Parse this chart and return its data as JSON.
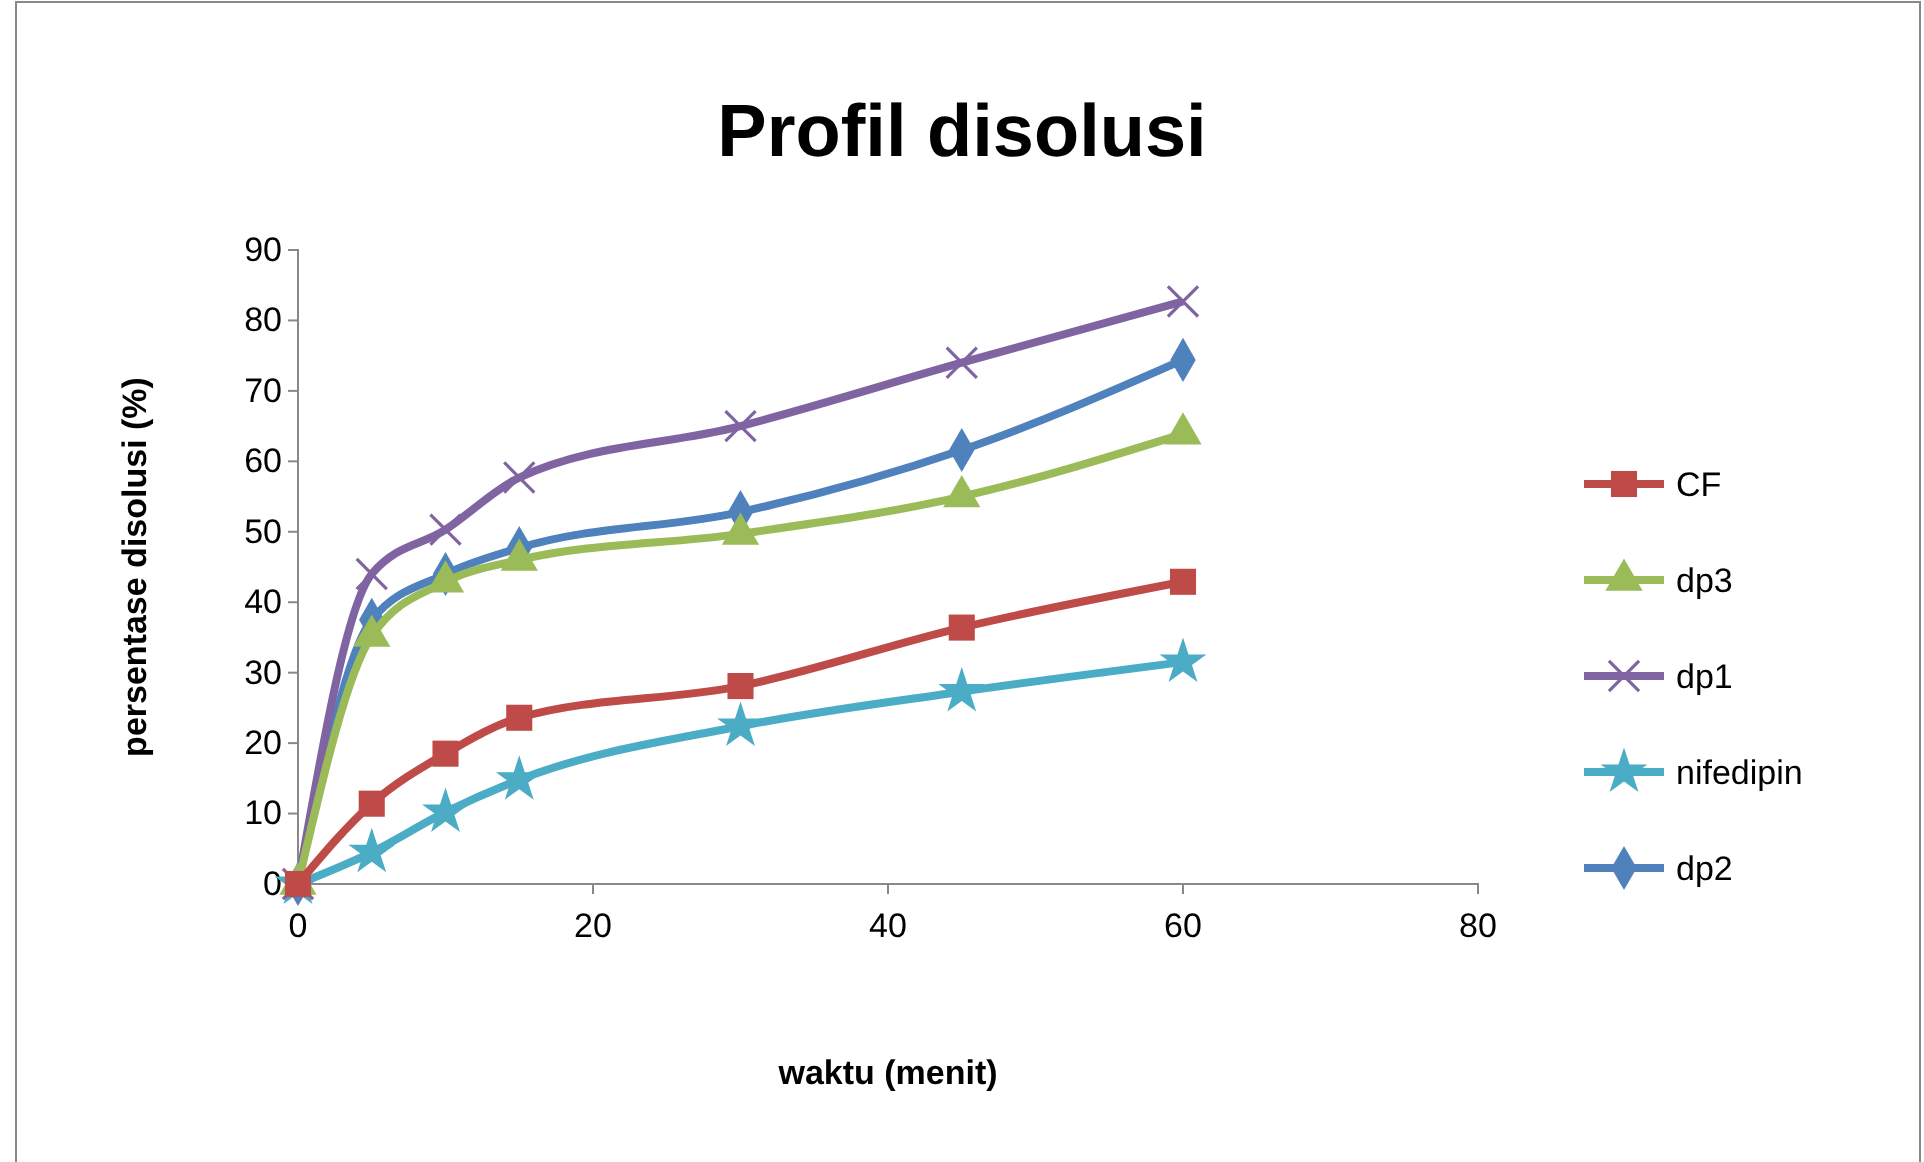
{
  "chart_data": {
    "type": "line",
    "title": "Profil disolusi",
    "xlabel": "waktu (menit)",
    "ylabel": "persentase disolusi (%)",
    "x": [
      0,
      5,
      10,
      15,
      30,
      45,
      60
    ],
    "xlim": [
      0,
      80
    ],
    "xticks": [
      0,
      20,
      40,
      60,
      80
    ],
    "ylim": [
      0,
      90
    ],
    "yticks": [
      0,
      10,
      20,
      30,
      40,
      50,
      60,
      70,
      80,
      90
    ],
    "grid": false,
    "legend": "right",
    "series": [
      {
        "name": "CF",
        "color": "#be4b48",
        "marker": "square",
        "values": [
          0,
          11.4,
          18.5,
          23.6,
          28.1,
          36.4,
          42.9
        ]
      },
      {
        "name": "dp3",
        "color": "#9bbb59",
        "marker": "triangle",
        "values": [
          0,
          35.2,
          42.9,
          46,
          49.7,
          55,
          63.9
        ]
      },
      {
        "name": "dp1",
        "color": "#8064a2",
        "marker": "cross",
        "values": [
          0,
          44,
          50.3,
          57.7,
          65,
          74,
          82.7
        ]
      },
      {
        "name": "nifedipin",
        "color": "#4bacc6",
        "marker": "star",
        "values": [
          0,
          4.5,
          10.2,
          14.8,
          22.4,
          27.3,
          31.5
        ]
      },
      {
        "name": "dp2",
        "color": "#4f81bd",
        "marker": "diamond",
        "values": [
          0,
          37.5,
          44,
          47.7,
          52.8,
          61.6,
          74.4
        ]
      }
    ]
  }
}
